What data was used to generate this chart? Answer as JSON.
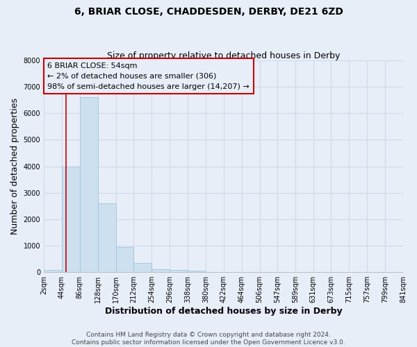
{
  "title": "6, BRIAR CLOSE, CHADDESDEN, DERBY, DE21 6ZD",
  "subtitle": "Size of property relative to detached houses in Derby",
  "xlabel": "Distribution of detached houses by size in Derby",
  "ylabel": "Number of detached properties",
  "footer_line1": "Contains HM Land Registry data © Crown copyright and database right 2024.",
  "footer_line2": "Contains public sector information licensed under the Open Government Licence v3.0.",
  "bar_edges": [
    2,
    44,
    86,
    128,
    170,
    212,
    254,
    296,
    338,
    380,
    422,
    464,
    506,
    547,
    589,
    631,
    673,
    715,
    757,
    799,
    841
  ],
  "bar_heights": [
    75,
    4000,
    6600,
    2600,
    950,
    330,
    120,
    70,
    55,
    0,
    0,
    0,
    0,
    0,
    0,
    0,
    0,
    0,
    0,
    0
  ],
  "bar_color": "#cce0f0",
  "bar_edge_color": "#a0c4e0",
  "ylim": [
    0,
    8000
  ],
  "yticks": [
    0,
    1000,
    2000,
    3000,
    4000,
    5000,
    6000,
    7000,
    8000
  ],
  "xtick_labels": [
    "2sqm",
    "44sqm",
    "86sqm",
    "128sqm",
    "170sqm",
    "212sqm",
    "254sqm",
    "296sqm",
    "338sqm",
    "380sqm",
    "422sqm",
    "464sqm",
    "506sqm",
    "547sqm",
    "589sqm",
    "631sqm",
    "673sqm",
    "715sqm",
    "757sqm",
    "799sqm",
    "841sqm"
  ],
  "property_size": 54,
  "red_line_color": "#cc0000",
  "annotation_line1": "6 BRIAR CLOSE: 54sqm",
  "annotation_line2": "← 2% of detached houses are smaller (306)",
  "annotation_line3": "98% of semi-detached houses are larger (14,207) →",
  "annotation_box_color": "#cc0000",
  "background_color": "#e8eef8",
  "grid_color": "#d0d8e8",
  "title_fontsize": 10,
  "subtitle_fontsize": 9,
  "axis_label_fontsize": 9,
  "tick_fontsize": 7,
  "annotation_fontsize": 8,
  "footer_fontsize": 6.5
}
